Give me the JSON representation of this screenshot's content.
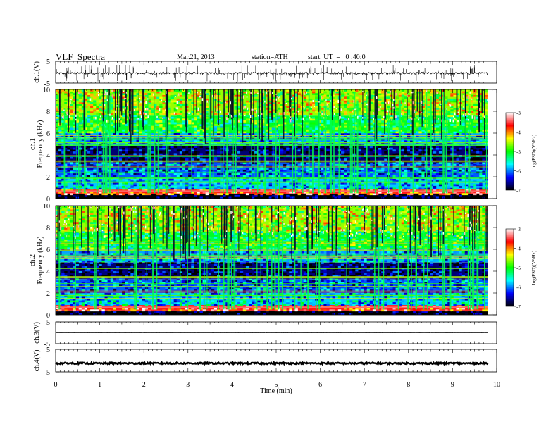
{
  "header": {
    "title": "VLF  Spectra",
    "date": "Mar.21, 2013",
    "station": "station=ATH",
    "start": "start  UT  =   0 :40:0"
  },
  "chart_data": [
    {
      "type": "line",
      "id": "ch1",
      "ylabel": "ch.1(V)",
      "ylim": [
        -5,
        5
      ],
      "yticks": [
        "5",
        "-5"
      ],
      "baseline_v": -0.5,
      "noise_v": 0.5,
      "spike_count": 150
    },
    {
      "type": "heatmap",
      "id": "ch1-spectrogram",
      "ylabel_lines": [
        "ch.1",
        "Frequency  (kHz)"
      ],
      "ylim": [
        0,
        10
      ],
      "yticks": [
        "0",
        "2",
        "4",
        "6",
        "8",
        "10"
      ],
      "colorbar": {
        "label": "log(PSD)(V²/Hz)",
        "range": [
          -7,
          -3
        ],
        "ticks": [
          "-3",
          "-4",
          "-5",
          "-6",
          "-7"
        ],
        "colors": [
          "#000000",
          "#0000ff",
          "#00ffff",
          "#00ff00",
          "#ffff00",
          "#ff0000",
          "#ffffff"
        ]
      },
      "bands_khz": [
        {
          "from": 0,
          "to": 0.4,
          "level": -7
        },
        {
          "from": 0.4,
          "to": 0.9,
          "level": -3.6
        },
        {
          "from": 0.9,
          "to": 2.0,
          "level": -5.8
        },
        {
          "from": 2.0,
          "to": 3.3,
          "level": -6.1
        },
        {
          "from": 3.3,
          "to": 4.8,
          "level": -6.7
        },
        {
          "from": 4.8,
          "to": 6.0,
          "level": -5.9
        },
        {
          "from": 6.0,
          "to": 7.6,
          "level": -5.1
        },
        {
          "from": 7.6,
          "to": 10.0,
          "level": -4.6
        }
      ]
    },
    {
      "type": "heatmap",
      "id": "ch2-spectrogram",
      "ylabel_lines": [
        "ch.2",
        "Frequency  (kHz)"
      ],
      "ylim": [
        0,
        10
      ],
      "yticks": [
        "0",
        "2",
        "4",
        "6",
        "8",
        "10"
      ],
      "colorbar": {
        "label": "log(PSD)(V²/Hz)",
        "range": [
          -7,
          -3
        ],
        "ticks": [
          "-3",
          "-4",
          "-5",
          "-6",
          "-7"
        ],
        "colors": [
          "#000000",
          "#0000ff",
          "#00ffff",
          "#00ff00",
          "#ffff00",
          "#ff0000",
          "#ffffff"
        ]
      },
      "bands_khz": [
        {
          "from": 0,
          "to": 0.4,
          "level": -7
        },
        {
          "from": 0.4,
          "to": 0.9,
          "level": -3.6
        },
        {
          "from": 0.9,
          "to": 2.0,
          "level": -5.8
        },
        {
          "from": 2.0,
          "to": 3.3,
          "level": -6.1
        },
        {
          "from": 3.3,
          "to": 4.8,
          "level": -6.7
        },
        {
          "from": 4.8,
          "to": 6.0,
          "level": -5.9
        },
        {
          "from": 6.0,
          "to": 7.6,
          "level": -5.1
        },
        {
          "from": 7.6,
          "to": 10.0,
          "level": -4.6
        }
      ]
    },
    {
      "type": "line",
      "id": "ch3",
      "ylabel": "ch.3(V)",
      "ylim": [
        -5,
        5
      ],
      "yticks": [
        "5",
        "-5"
      ],
      "baseline_v": 0,
      "noise_v": 0.05,
      "spike_count": 0
    },
    {
      "type": "line",
      "id": "ch4",
      "ylabel": "ch.4(V)",
      "ylim": [
        -5,
        5
      ],
      "yticks": [
        "5",
        "-5"
      ],
      "baseline_v": -1.2,
      "noise_v": 0.35,
      "spike_count": 0
    }
  ],
  "xaxis": {
    "label": "Time  (min)",
    "range": [
      0,
      10
    ],
    "data_end": 9.8,
    "ticks": [
      "0",
      "1",
      "2",
      "3",
      "4",
      "5",
      "6",
      "7",
      "8",
      "9",
      "10"
    ]
  }
}
